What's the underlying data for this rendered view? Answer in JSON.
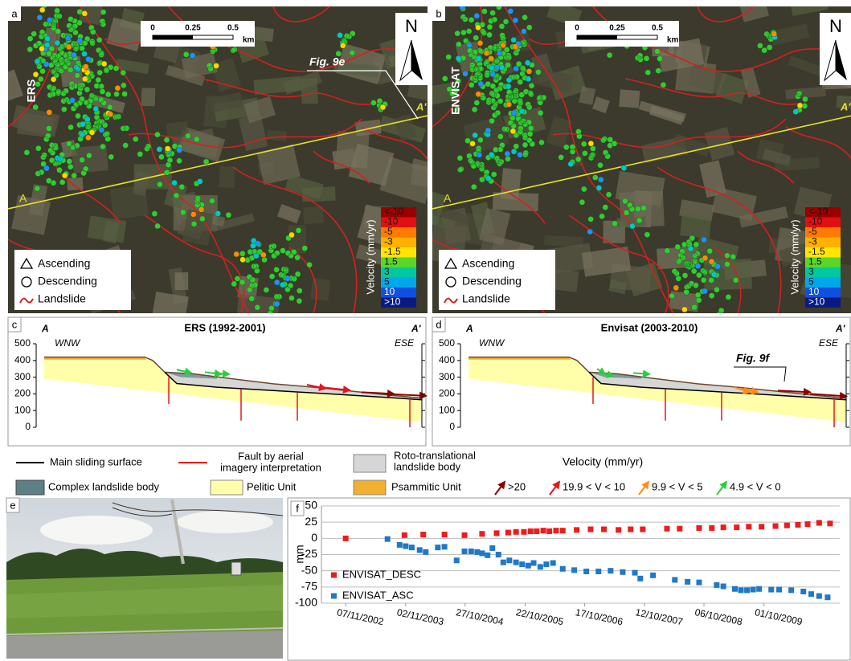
{
  "panel_a": {
    "label": "a",
    "sensor": "ERS",
    "scale_ticks": [
      "0",
      "0.25",
      "0.5"
    ],
    "scale_unit": "km",
    "north": "N",
    "fig_ref": "Fig. 9e",
    "start": "A",
    "end": "A'",
    "legend": [
      "Ascending",
      "Descending",
      "Landslide"
    ],
    "colorbar_title": "Velocity (mm/yr)",
    "colorbar": [
      "<-10",
      "-10",
      "-5",
      "-3",
      "-1.5",
      "1.5",
      "3",
      "5",
      "10",
      ">10"
    ]
  },
  "panel_b": {
    "label": "b",
    "sensor": "ENVISAT",
    "scale_ticks": [
      "0",
      "0.25",
      "0.5"
    ],
    "scale_unit": "km",
    "north": "N",
    "start": "A",
    "end": "A'",
    "legend": [
      "Ascending",
      "Descending",
      "Landslide"
    ],
    "colorbar_title": "Velocity (mm/yr)",
    "colorbar": [
      "<-10",
      "-10",
      "-5",
      "-3",
      "-1.5",
      "1.5",
      "3",
      "5",
      "10",
      ">10"
    ]
  },
  "panel_c": {
    "label": "c",
    "title": "ERS (1992-2001)",
    "start": "A",
    "end": "A'",
    "west": "WNW",
    "east": "ESE",
    "yticks": [
      0,
      100,
      200,
      300,
      400,
      500
    ]
  },
  "panel_d": {
    "label": "d",
    "title": "Envisat (2003-2010)",
    "start": "A",
    "end": "A'",
    "west": "WNW",
    "east": "ESE",
    "fig_ref": "Fig. 9f",
    "yticks": [
      0,
      100,
      200,
      300,
      400,
      500
    ]
  },
  "legend": {
    "main_sliding_surface": "Main sliding surface",
    "fault": [
      "Fault by aerial",
      "imagery interpretation"
    ],
    "roto": [
      "Roto-translational",
      "landslide body"
    ],
    "complex": "Complex landslide body",
    "pelitic": "Pelitic Unit",
    "psammitic": "Psammitic Unit",
    "velocity_title": "Velocity (mm/yr)",
    "velocity_classes": [
      ">20",
      "19.9 < V < 10",
      "9.9 < V < 5",
      "4.9 < V < 0"
    ]
  },
  "panel_e": {
    "label": "e"
  },
  "panel_f": {
    "label": "f",
    "chart": {
      "type": "scatter",
      "ylabel": "mm",
      "xlim": [
        2002.45,
        2011.0
      ],
      "xticks": [
        {
          "value": 2002.85,
          "label": "07/11/2002"
        },
        {
          "value": 2003.84,
          "label": "02/11/2003"
        },
        {
          "value": 2004.82,
          "label": "27/10/2004"
        },
        {
          "value": 2005.81,
          "label": "22/10/2005"
        },
        {
          "value": 2006.79,
          "label": "17/10/2006"
        },
        {
          "value": 2007.78,
          "label": "12/10/2007"
        },
        {
          "value": 2008.76,
          "label": "06/10/2008"
        },
        {
          "value": 2009.75,
          "label": "01/10/2009"
        }
      ],
      "ylim": [
        -100,
        50
      ],
      "yticks": [
        -100,
        -75,
        -50,
        -25,
        0,
        25,
        50
      ],
      "grid": true,
      "legend": "lower left",
      "series": [
        {
          "name": "ENVISAT_DESC",
          "color": "#ee1c1c",
          "x": [
            2002.85,
            2003.82,
            2004.13,
            2004.48,
            2004.81,
            2005.1,
            2005.34,
            2005.53,
            2005.66,
            2005.79,
            2005.9,
            2006.0,
            2006.11,
            2006.21,
            2006.32,
            2006.43,
            2006.66,
            2006.89,
            2007.11,
            2007.35,
            2007.55,
            2007.75,
            2008.15,
            2008.36,
            2008.68,
            2008.89,
            2009.08,
            2009.3,
            2009.5,
            2009.71,
            2009.94,
            2010.13,
            2010.31,
            2010.47,
            2010.66,
            2010.84
          ],
          "values": [
            0,
            5,
            6,
            6,
            5,
            7,
            8,
            9,
            10,
            10,
            11,
            11,
            12,
            11,
            12,
            12,
            13,
            14,
            14,
            13,
            14,
            14,
            15,
            15,
            16,
            16,
            17,
            17,
            18,
            18,
            19,
            20,
            21,
            22,
            24,
            23
          ]
        },
        {
          "name": "ENVISAT_ASC",
          "color": "#1f78c8",
          "x": [
            2003.54,
            2003.74,
            2003.84,
            2003.94,
            2004.07,
            2004.17,
            2004.37,
            2004.48,
            2004.68,
            2004.81,
            2004.92,
            2005.02,
            2005.1,
            2005.19,
            2005.27,
            2005.37,
            2005.45,
            2005.55,
            2005.66,
            2005.76,
            2005.86,
            2005.95,
            2006.06,
            2006.16,
            2006.27,
            2006.43,
            2006.62,
            2006.82,
            2007.02,
            2007.22,
            2007.42,
            2007.62,
            2007.71,
            2007.92,
            2008.28,
            2008.49,
            2008.68,
            2008.97,
            2009.08,
            2009.27,
            2009.37,
            2009.47,
            2009.57,
            2009.67,
            2009.87,
            2010.0,
            2010.2,
            2010.4,
            2010.53,
            2010.66,
            2010.8
          ],
          "values": [
            -1,
            -10,
            -12,
            -14,
            -18,
            -21,
            -14,
            -13,
            -34,
            -20,
            -20,
            -21,
            -23,
            -26,
            -15,
            -25,
            -37,
            -34,
            -37,
            -40,
            -42,
            -38,
            -44,
            -40,
            -38,
            -47,
            -49,
            -51,
            -51,
            -50,
            -52,
            -53,
            -62,
            -57,
            -64,
            -67,
            -68,
            -72,
            -74,
            -78,
            -80,
            -80,
            -79,
            -78,
            -79,
            -79,
            -80,
            -82,
            -86,
            -89,
            -91
          ]
        }
      ]
    }
  }
}
